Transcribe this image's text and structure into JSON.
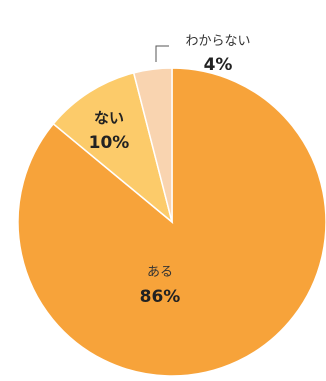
{
  "chart_data": {
    "type": "pie",
    "slices": [
      {
        "label": "ある",
        "value": 86,
        "display": "86%",
        "color": "#F7A33A"
      },
      {
        "label": "ない",
        "value": 10,
        "display": "10%",
        "color": "#FCCB6A"
      },
      {
        "label": "わからない",
        "value": 4,
        "display": "4%",
        "color": "#F9D4B0"
      }
    ]
  }
}
